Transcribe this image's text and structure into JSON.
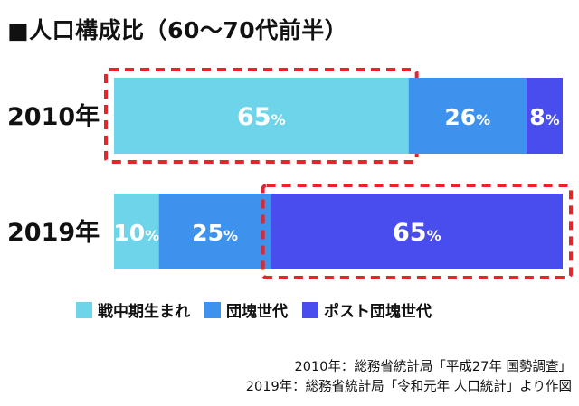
{
  "title": "■人口構成比（60〜70代前半）",
  "chart_data": {
    "type": "bar",
    "orientation": "horizontal",
    "stacked": true,
    "percent_scale": true,
    "unit": "%",
    "categories": [
      "2010年",
      "2019年"
    ],
    "series": [
      {
        "name": "戦中期生まれ",
        "values": [
          65,
          10
        ],
        "color": "#6dd4ea"
      },
      {
        "name": "団塊世代",
        "values": [
          26,
          25
        ],
        "color": "#3d92ee"
      },
      {
        "name": "ポスト団塊世代",
        "values": [
          8,
          65
        ],
        "color": "#4a4ded"
      }
    ],
    "highlights": [
      {
        "category": "2010年",
        "series": "戦中期生まれ"
      },
      {
        "category": "2019年",
        "series": "ポスト団塊世代"
      }
    ],
    "highlight_color": "#e8242b",
    "legend_position": "bottom"
  },
  "legend": [
    {
      "label": "戦中期生まれ",
      "color": "#6dd4ea"
    },
    {
      "label": "団塊世代",
      "color": "#3d92ee"
    },
    {
      "label": "ポスト団塊世代",
      "color": "#4a4ded"
    }
  ],
  "source": [
    "2010年：総務省統計局「平成27年 国勢調査」",
    "2019年：総務省統計局「令和元年 人口統計」より作図"
  ]
}
